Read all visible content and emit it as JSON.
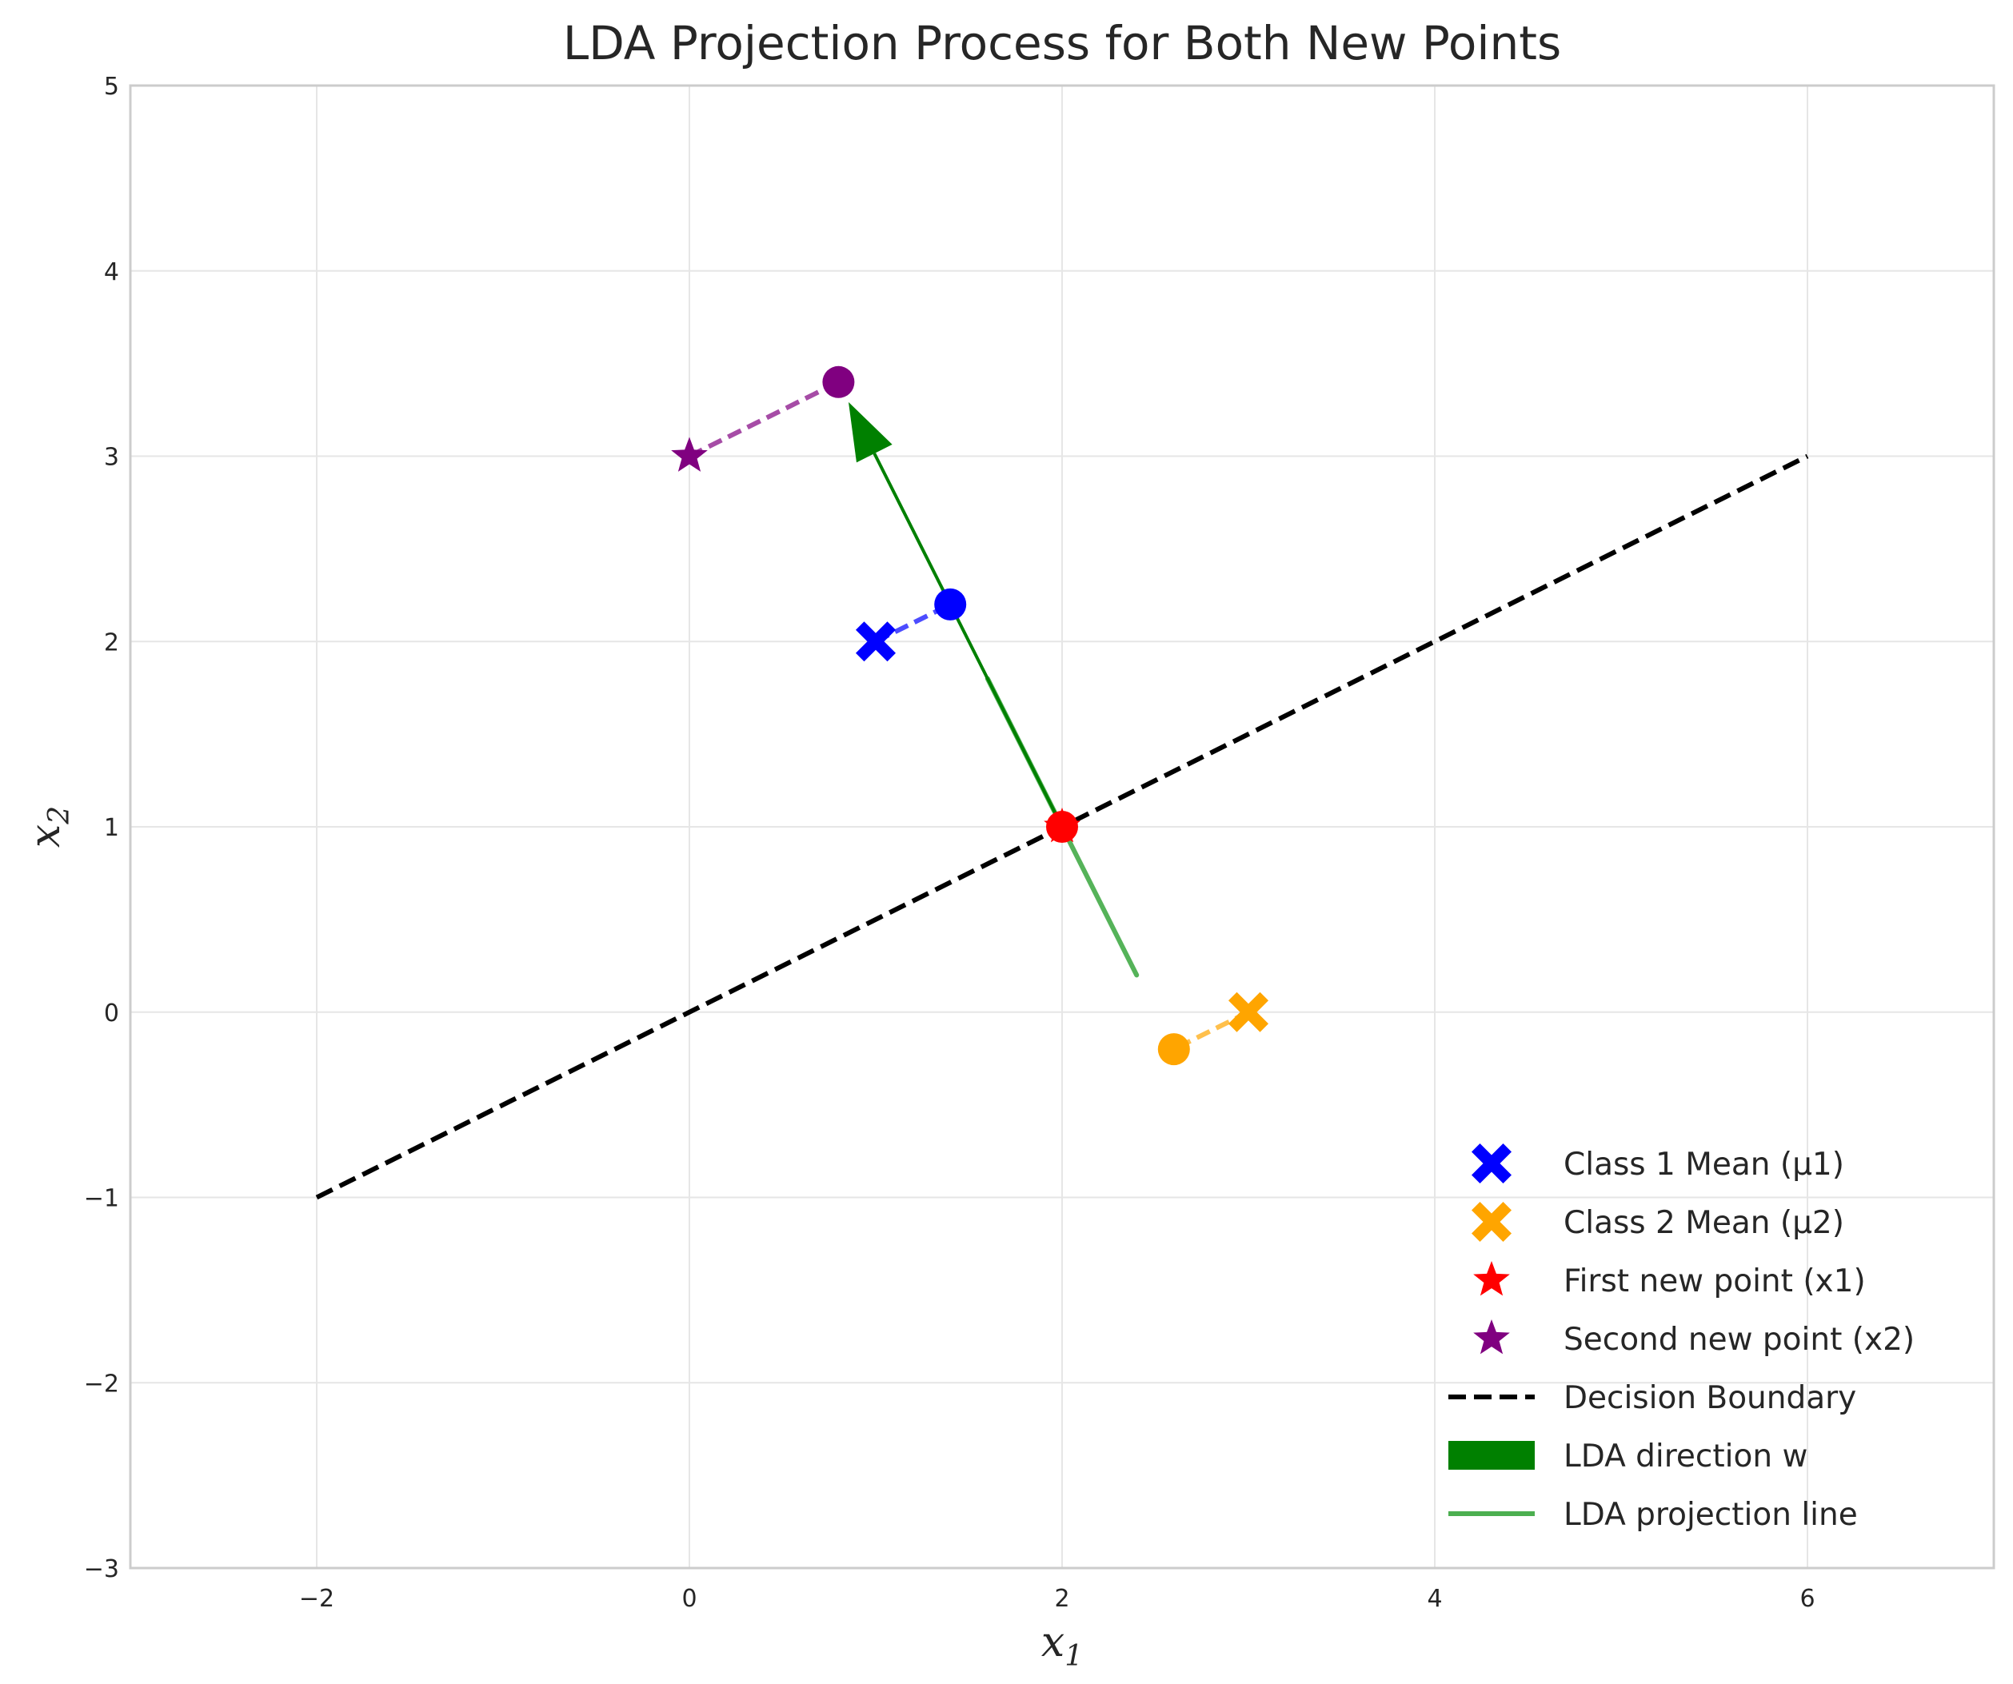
{
  "chart_data": {
    "type": "scatter",
    "title": "LDA Projection Process for Both New Points",
    "xlabel": "x",
    "xlabel_subscript": "1",
    "ylabel": "x",
    "ylabel_subscript": "2",
    "xlim": [
      -3,
      7
    ],
    "ylim": [
      -3,
      5
    ],
    "xticks": [
      -2,
      0,
      2,
      4,
      6
    ],
    "yticks": [
      -3,
      -2,
      -1,
      0,
      1,
      2,
      3,
      4,
      5
    ],
    "xtick_labels": [
      "−2",
      "0",
      "2",
      "4",
      "6"
    ],
    "ytick_labels": [
      "−3",
      "−2",
      "−1",
      "0",
      "1",
      "2",
      "3",
      "4",
      "5"
    ],
    "grid": true,
    "legend_position": "lower-right",
    "points": [
      {
        "name": "Class 1 Mean (μ1)",
        "marker": "X",
        "color": "#0000ff",
        "x": 1,
        "y": 2
      },
      {
        "name": "Class 2 Mean (μ2)",
        "marker": "X",
        "color": "#ffa500",
        "x": 3,
        "y": 0
      },
      {
        "name": "First new point (x1)",
        "marker": "star",
        "color": "#ff0000",
        "x": 2,
        "y": 1
      },
      {
        "name": "Second new point (x2)",
        "marker": "star",
        "color": "#800080",
        "x": 0,
        "y": 3
      }
    ],
    "projected_points": [
      {
        "color": "#0000ff",
        "x": 1.4,
        "y": 2.2,
        "from": [
          1,
          2
        ]
      },
      {
        "color": "#ffa500",
        "x": 2.6,
        "y": -0.2,
        "from": [
          3,
          0
        ]
      },
      {
        "color": "#ff0000",
        "x": 2,
        "y": 1,
        "from": [
          2,
          1
        ]
      },
      {
        "color": "#800080",
        "x": 0.8,
        "y": 3.4,
        "from": [
          0,
          3
        ]
      }
    ],
    "decision_boundary": {
      "name": "Decision Boundary",
      "color": "#000000",
      "x": [
        -2,
        6
      ],
      "y": [
        -1,
        3
      ]
    },
    "lda_direction": {
      "name": "LDA direction w",
      "color": "#008000",
      "start": [
        2,
        1
      ],
      "end": [
        0.8,
        3.4
      ]
    },
    "projection_line": {
      "name": "LDA projection line",
      "color": "#4caf50",
      "x": [
        1.6,
        2.4
      ],
      "y": [
        1.8,
        0.2
      ]
    }
  }
}
